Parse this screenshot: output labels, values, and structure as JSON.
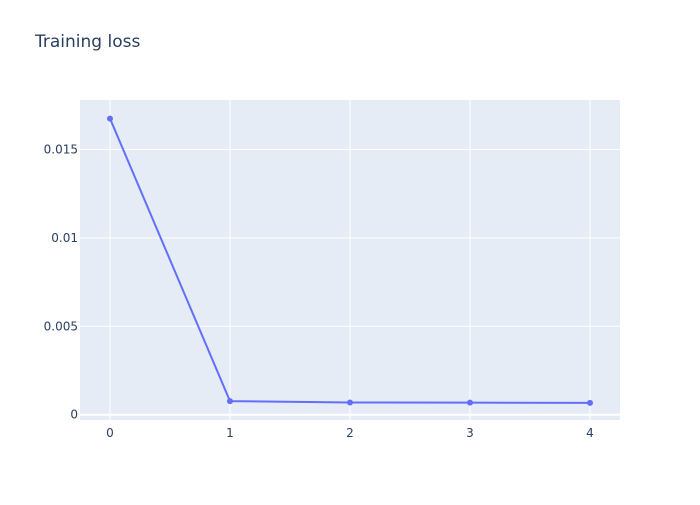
{
  "chart_data": {
    "type": "line",
    "title": "Training loss",
    "xlabel": "",
    "ylabel": "",
    "x": [
      0,
      1,
      2,
      3,
      4
    ],
    "series": [
      {
        "values": [
          0.01675,
          0.00077,
          0.00069,
          0.00068,
          0.00067
        ],
        "color": "#636efa"
      }
    ],
    "xlim": [
      -0.25,
      4.25
    ],
    "ylim": [
      -0.0003,
      0.0178
    ],
    "x_ticks": [
      0,
      1,
      2,
      3,
      4
    ],
    "x_tick_labels": [
      "0",
      "1",
      "2",
      "3",
      "4"
    ],
    "y_ticks": [
      0,
      0.005,
      0.01,
      0.015
    ],
    "y_tick_labels": [
      "0",
      "0.005",
      "0.01",
      "0.015"
    ],
    "grid": true,
    "colors": {
      "plot_bg": "#e5ecf6",
      "grid": "#ffffff",
      "text": "#2a3f5f"
    }
  }
}
